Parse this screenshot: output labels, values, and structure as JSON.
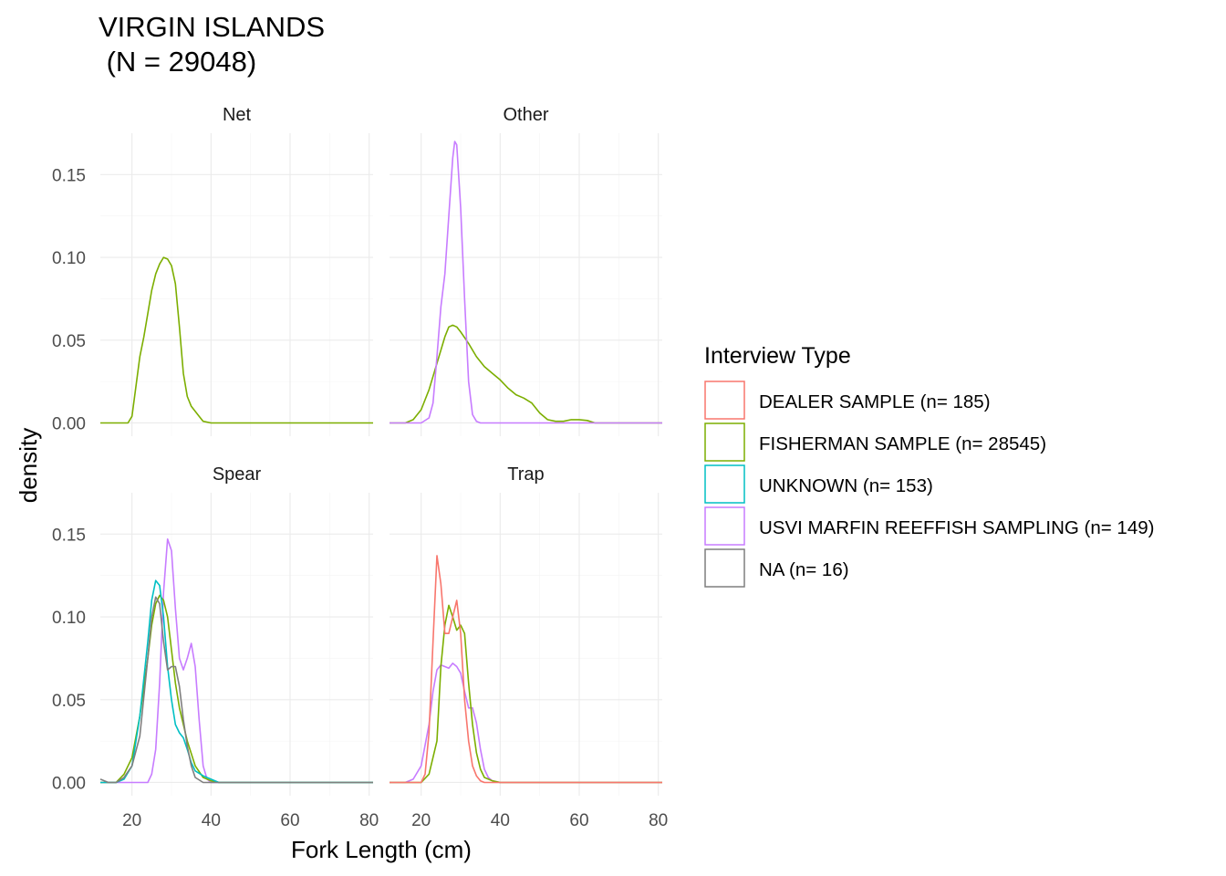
{
  "chart_data": {
    "type": "line",
    "subtype": "density facet",
    "title_line1": "VIRGIN ISLANDS",
    "title_line2": " (N = 29048)",
    "xlabel": "Fork Length (cm)",
    "ylabel": "density",
    "xlim": [
      12,
      81
    ],
    "ylim": [
      -0.008,
      0.175
    ],
    "xticks": [
      "20",
      "40",
      "60",
      "80"
    ],
    "yticks": [
      "0.00",
      "0.05",
      "0.10",
      "0.15"
    ],
    "grid": true,
    "legend_position": "right",
    "legend": {
      "title": "Interview Type",
      "entries": [
        {
          "label": "DEALER SAMPLE (n= 185)",
          "color": "#F8766D"
        },
        {
          "label": "FISHERMAN SAMPLE (n= 28545)",
          "color": "#7CAE00"
        },
        {
          "label": "UNKNOWN (n= 153)",
          "color": "#00BFC4"
        },
        {
          "label": "USVI MARFIN REEFFISH SAMPLING (n= 149)",
          "color": "#C77CFF"
        },
        {
          "label": "NA (n= 16)",
          "color": "#7F7F7F"
        }
      ]
    },
    "panels": [
      {
        "label": "Net",
        "series": [
          {
            "name": "FISHERMAN SAMPLE",
            "color": "#7CAE00",
            "points": [
              [
                12,
                0
              ],
              [
                19,
                0
              ],
              [
                20,
                0.004
              ],
              [
                21,
                0.022
              ],
              [
                22,
                0.04
              ],
              [
                23,
                0.052
              ],
              [
                24,
                0.066
              ],
              [
                25,
                0.08
              ],
              [
                26,
                0.09
              ],
              [
                27,
                0.096
              ],
              [
                28,
                0.1
              ],
              [
                29,
                0.099
              ],
              [
                30,
                0.095
              ],
              [
                31,
                0.084
              ],
              [
                32,
                0.058
              ],
              [
                33,
                0.03
              ],
              [
                34,
                0.016
              ],
              [
                35,
                0.01
              ],
              [
                36,
                0.007
              ],
              [
                37,
                0.004
              ],
              [
                38,
                0.001
              ],
              [
                40,
                0
              ],
              [
                81,
                0
              ]
            ]
          }
        ]
      },
      {
        "label": "Other",
        "series": [
          {
            "name": "FISHERMAN SAMPLE",
            "color": "#7CAE00",
            "points": [
              [
                12,
                0
              ],
              [
                16,
                0
              ],
              [
                18,
                0.002
              ],
              [
                20,
                0.008
              ],
              [
                22,
                0.02
              ],
              [
                24,
                0.036
              ],
              [
                26,
                0.052
              ],
              [
                27,
                0.058
              ],
              [
                28,
                0.059
              ],
              [
                29,
                0.058
              ],
              [
                30,
                0.055
              ],
              [
                32,
                0.048
              ],
              [
                34,
                0.04
              ],
              [
                36,
                0.034
              ],
              [
                38,
                0.03
              ],
              [
                40,
                0.026
              ],
              [
                42,
                0.021
              ],
              [
                44,
                0.017
              ],
              [
                46,
                0.015
              ],
              [
                48,
                0.012
              ],
              [
                50,
                0.006
              ],
              [
                52,
                0.002
              ],
              [
                54,
                0.001
              ],
              [
                56,
                0.001
              ],
              [
                58,
                0.002
              ],
              [
                60,
                0.002
              ],
              [
                62,
                0.0015
              ],
              [
                64,
                0
              ],
              [
                81,
                0
              ]
            ]
          },
          {
            "name": "USVI MARFIN REEFFISH SAMPLING",
            "color": "#C77CFF",
            "points": [
              [
                12,
                0
              ],
              [
                20,
                0
              ],
              [
                22,
                0.003
              ],
              [
                23,
                0.012
              ],
              [
                24,
                0.04
              ],
              [
                25,
                0.07
              ],
              [
                26,
                0.09
              ],
              [
                27,
                0.125
              ],
              [
                28,
                0.16
              ],
              [
                28.5,
                0.17
              ],
              [
                29,
                0.168
              ],
              [
                30,
                0.13
              ],
              [
                31,
                0.075
              ],
              [
                32,
                0.025
              ],
              [
                33,
                0.005
              ],
              [
                34,
                0.001
              ],
              [
                35,
                0
              ],
              [
                81,
                0
              ]
            ]
          }
        ]
      },
      {
        "label": "Spear",
        "series": [
          {
            "name": "USVI MARFIN REEFFISH SAMPLING",
            "color": "#C77CFF",
            "points": [
              [
                12,
                0
              ],
              [
                24,
                0
              ],
              [
                25,
                0.005
              ],
              [
                26,
                0.02
              ],
              [
                27,
                0.06
              ],
              [
                28,
                0.115
              ],
              [
                29,
                0.147
              ],
              [
                30,
                0.14
              ],
              [
                31,
                0.105
              ],
              [
                32,
                0.075
              ],
              [
                33,
                0.068
              ],
              [
                34,
                0.075
              ],
              [
                35,
                0.084
              ],
              [
                36,
                0.07
              ],
              [
                37,
                0.038
              ],
              [
                38,
                0.01
              ],
              [
                39,
                0.002
              ],
              [
                40,
                0
              ],
              [
                81,
                0
              ]
            ]
          },
          {
            "name": "FISHERMAN SAMPLE",
            "color": "#7CAE00",
            "points": [
              [
                12,
                0
              ],
              [
                16,
                0
              ],
              [
                18,
                0.005
              ],
              [
                20,
                0.015
              ],
              [
                22,
                0.04
              ],
              [
                24,
                0.075
              ],
              [
                25,
                0.095
              ],
              [
                26,
                0.108
              ],
              [
                27,
                0.113
              ],
              [
                28,
                0.11
              ],
              [
                29,
                0.1
              ],
              [
                30,
                0.08
              ],
              [
                31,
                0.06
              ],
              [
                32,
                0.045
              ],
              [
                34,
                0.025
              ],
              [
                36,
                0.01
              ],
              [
                38,
                0.003
              ],
              [
                40,
                0.001
              ],
              [
                42,
                0
              ],
              [
                81,
                0
              ]
            ]
          },
          {
            "name": "UNKNOWN",
            "color": "#00BFC4",
            "points": [
              [
                12,
                0
              ],
              [
                16,
                0
              ],
              [
                18,
                0.002
              ],
              [
                20,
                0.01
              ],
              [
                22,
                0.04
              ],
              [
                24,
                0.085
              ],
              [
                25,
                0.11
              ],
              [
                26,
                0.122
              ],
              [
                27,
                0.119
              ],
              [
                28,
                0.1
              ],
              [
                29,
                0.07
              ],
              [
                30,
                0.05
              ],
              [
                31,
                0.035
              ],
              [
                32,
                0.03
              ],
              [
                33,
                0.027
              ],
              [
                34,
                0.02
              ],
              [
                35,
                0.012
              ],
              [
                36,
                0.007
              ],
              [
                38,
                0.004
              ],
              [
                40,
                0.002
              ],
              [
                42,
                0
              ],
              [
                81,
                0
              ]
            ]
          },
          {
            "name": "NA",
            "color": "#7F7F7F",
            "points": [
              [
                12,
                0.002
              ],
              [
                14,
                0
              ],
              [
                16,
                0
              ],
              [
                18,
                0.003
              ],
              [
                20,
                0.01
              ],
              [
                22,
                0.028
              ],
              [
                24,
                0.075
              ],
              [
                25,
                0.1
              ],
              [
                26,
                0.112
              ],
              [
                27,
                0.108
              ],
              [
                28,
                0.085
              ],
              [
                29,
                0.068
              ],
              [
                30,
                0.07
              ],
              [
                31,
                0.07
              ],
              [
                32,
                0.058
              ],
              [
                33,
                0.038
              ],
              [
                34,
                0.022
              ],
              [
                35,
                0.01
              ],
              [
                36,
                0.003
              ],
              [
                38,
                0
              ],
              [
                81,
                0
              ]
            ]
          }
        ]
      },
      {
        "label": "Trap",
        "series": [
          {
            "name": "USVI MARFIN REEFFISH SAMPLING",
            "color": "#C77CFF",
            "points": [
              [
                12,
                0
              ],
              [
                16,
                0
              ],
              [
                18,
                0.002
              ],
              [
                20,
                0.01
              ],
              [
                22,
                0.035
              ],
              [
                23,
                0.055
              ],
              [
                24,
                0.068
              ],
              [
                25,
                0.071
              ],
              [
                26,
                0.07
              ],
              [
                27,
                0.069
              ],
              [
                28,
                0.072
              ],
              [
                29,
                0.07
              ],
              [
                30,
                0.066
              ],
              [
                31,
                0.055
              ],
              [
                32,
                0.045
              ],
              [
                33,
                0.045
              ],
              [
                34,
                0.036
              ],
              [
                35,
                0.02
              ],
              [
                36,
                0.008
              ],
              [
                37,
                0.003
              ],
              [
                38,
                0.001
              ],
              [
                40,
                0
              ],
              [
                81,
                0
              ]
            ]
          },
          {
            "name": "FISHERMAN SAMPLE",
            "color": "#7CAE00",
            "points": [
              [
                12,
                0
              ],
              [
                20,
                0
              ],
              [
                22,
                0.005
              ],
              [
                24,
                0.025
              ],
              [
                25,
                0.07
              ],
              [
                26,
                0.095
              ],
              [
                27,
                0.107
              ],
              [
                28,
                0.1
              ],
              [
                29,
                0.092
              ],
              [
                30,
                0.095
              ],
              [
                31,
                0.09
              ],
              [
                32,
                0.06
              ],
              [
                33,
                0.035
              ],
              [
                34,
                0.018
              ],
              [
                35,
                0.008
              ],
              [
                36,
                0.003
              ],
              [
                38,
                0.001
              ],
              [
                40,
                0
              ],
              [
                81,
                0
              ]
            ]
          },
          {
            "name": "DEALER SAMPLE",
            "color": "#F8766D",
            "points": [
              [
                12,
                0
              ],
              [
                20,
                0
              ],
              [
                21,
                0.005
              ],
              [
                22,
                0.03
              ],
              [
                23,
                0.085
              ],
              [
                24,
                0.137
              ],
              [
                25,
                0.12
              ],
              [
                26,
                0.09
              ],
              [
                27,
                0.09
              ],
              [
                28,
                0.1
              ],
              [
                29,
                0.11
              ],
              [
                30,
                0.09
              ],
              [
                31,
                0.05
              ],
              [
                32,
                0.025
              ],
              [
                33,
                0.01
              ],
              [
                34,
                0.004
              ],
              [
                35,
                0.001
              ],
              [
                36,
                0
              ],
              [
                81,
                0
              ]
            ]
          }
        ]
      }
    ]
  }
}
